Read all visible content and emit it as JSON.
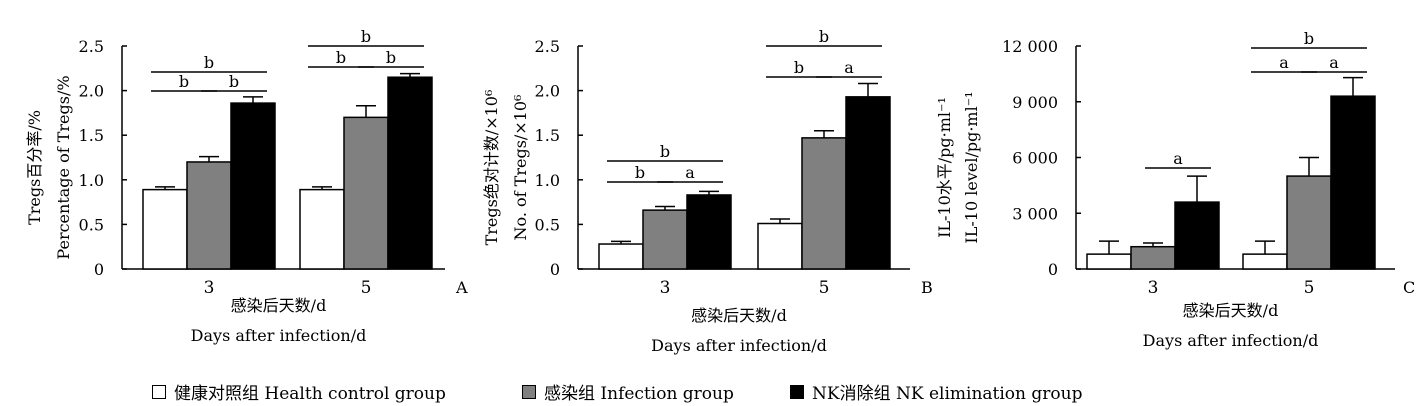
{
  "figure": {
    "legend": [
      {
        "label": "健康对照组  Health  control  group",
        "color": "#ffffff"
      },
      {
        "label": "感染组  Infection  group",
        "color": "#808080"
      },
      {
        "label": "NK消除组  NK  elimination  group",
        "color": "#000000"
      }
    ]
  },
  "chart_data": [
    {
      "type": "bar",
      "panel": "A",
      "categories": [
        "3",
        "5"
      ],
      "series": [
        {
          "name": "健康对照组 Health control group",
          "color": "#ffffff",
          "values": [
            0.89,
            0.89
          ],
          "errors": [
            0.03,
            0.03
          ]
        },
        {
          "name": "感染组 Infection group",
          "color": "#808080",
          "values": [
            1.2,
            1.7
          ],
          "errors": [
            0.06,
            0.13
          ]
        },
        {
          "name": "NK消除组 NK elimination group",
          "color": "#000000",
          "values": [
            1.86,
            2.15
          ],
          "errors": [
            0.07,
            0.04
          ]
        }
      ],
      "ylim": [
        0,
        2.5
      ],
      "yticks": [
        "0",
        "0.5",
        "1.0",
        "1.5",
        "2.0",
        "2.5"
      ],
      "ylabel_cn": "Tregs百分率/%",
      "ylabel_en": "Percentage  of  Tregs/%",
      "xlabel_cn": "感染后天数/d",
      "xlabel_en": "Days  after  infection/d",
      "significance": [
        {
          "group": 0,
          "from": 0,
          "to": 2,
          "label": "b",
          "level": 0
        },
        {
          "group": 0,
          "from": 0,
          "to": 1,
          "label": "b",
          "level": 1
        },
        {
          "group": 0,
          "from": 1,
          "to": 2,
          "label": "b",
          "level": 1
        },
        {
          "group": 1,
          "from": 0,
          "to": 2,
          "label": "b",
          "level": 0
        },
        {
          "group": 1,
          "from": 0,
          "to": 1,
          "label": "b",
          "level": 1
        },
        {
          "group": 1,
          "from": 1,
          "to": 2,
          "label": "b",
          "level": 1
        }
      ]
    },
    {
      "type": "bar",
      "panel": "B",
      "categories": [
        "3",
        "5"
      ],
      "series": [
        {
          "name": "健康对照组 Health control group",
          "color": "#ffffff",
          "values": [
            0.28,
            0.51
          ],
          "errors": [
            0.03,
            0.05
          ]
        },
        {
          "name": "感染组 Infection group",
          "color": "#808080",
          "values": [
            0.66,
            1.47
          ],
          "errors": [
            0.04,
            0.08
          ]
        },
        {
          "name": "NK消除组 NK elimination group",
          "color": "#000000",
          "values": [
            0.83,
            1.93
          ],
          "errors": [
            0.04,
            0.15
          ]
        }
      ],
      "ylim": [
        0,
        2.5
      ],
      "yticks": [
        "0",
        "0.5",
        "1.0",
        "1.5",
        "2.0",
        "2.5"
      ],
      "ylabel_cn": "Tregs绝对计数/×10⁶",
      "ylabel_en": "No.  of  Tregs/×10⁶",
      "xlabel_cn": "感染后天数/d",
      "xlabel_en": "Days  after  infection/d",
      "significance": [
        {
          "group": 0,
          "from": 0,
          "to": 2,
          "label": "b",
          "level": 0
        },
        {
          "group": 0,
          "from": 0,
          "to": 1,
          "label": "b",
          "level": 1
        },
        {
          "group": 0,
          "from": 1,
          "to": 2,
          "label": "a",
          "level": 1
        },
        {
          "group": 1,
          "from": 0,
          "to": 2,
          "label": "b",
          "level": 0
        },
        {
          "group": 1,
          "from": 0,
          "to": 1,
          "label": "b",
          "level": 1
        },
        {
          "group": 1,
          "from": 1,
          "to": 2,
          "label": "a",
          "level": 1
        }
      ]
    },
    {
      "type": "bar",
      "panel": "C",
      "categories": [
        "3",
        "5"
      ],
      "series": [
        {
          "name": "健康对照组 Health control group",
          "color": "#ffffff",
          "values": [
            800,
            800
          ],
          "errors": [
            700,
            700
          ]
        },
        {
          "name": "感染组 Infection group",
          "color": "#808080",
          "values": [
            1200,
            5000
          ],
          "errors": [
            200,
            1000
          ]
        },
        {
          "name": "NK消除组 NK elimination group",
          "color": "#000000",
          "values": [
            3600,
            9300
          ],
          "errors": [
            1400,
            1000
          ]
        }
      ],
      "ylim": [
        0,
        12000
      ],
      "yticks": [
        "0",
        "3 000",
        "6 000",
        "9 000",
        "12 000"
      ],
      "ylabel_cn": "IL-10水平/pg·ml⁻¹",
      "ylabel_en": "IL-10  level/pg·ml⁻¹",
      "xlabel_cn": "感染后天数/d",
      "xlabel_en": "Days  after  infection/d",
      "significance": [
        {
          "group": 0,
          "from": 1,
          "to": 2,
          "label": "a",
          "level": 1
        },
        {
          "group": 1,
          "from": 0,
          "to": 2,
          "label": "b",
          "level": 0
        },
        {
          "group": 1,
          "from": 0,
          "to": 1,
          "label": "a",
          "level": 1
        },
        {
          "group": 1,
          "from": 1,
          "to": 2,
          "label": "a",
          "level": 1
        }
      ]
    }
  ]
}
